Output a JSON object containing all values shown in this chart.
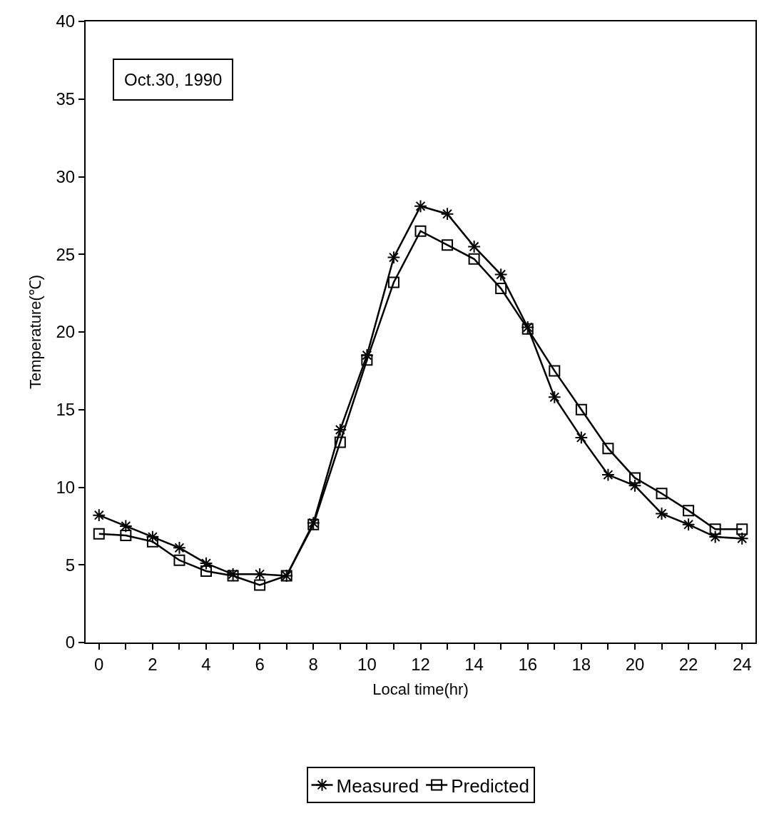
{
  "chart_data": {
    "type": "line",
    "xlabel": "Local time(hr)",
    "ylabel": "Temperature(℃)",
    "x": [
      0,
      1,
      2,
      3,
      4,
      5,
      6,
      7,
      8,
      9,
      10,
      11,
      12,
      13,
      14,
      15,
      16,
      17,
      18,
      19,
      20,
      21,
      22,
      23,
      24
    ],
    "series": [
      {
        "name": "Measured",
        "color": "#000000",
        "marker": "cross",
        "values": [
          8.2,
          7.5,
          6.8,
          6.1,
          5.1,
          4.4,
          4.4,
          4.3,
          7.7,
          13.7,
          18.5,
          24.8,
          28.1,
          27.6,
          25.5,
          23.7,
          20.3,
          15.8,
          13.2,
          10.8,
          10.1,
          8.3,
          7.6,
          6.8,
          6.7
        ]
      },
      {
        "name": "Predicted",
        "color": "#000000",
        "marker": "square",
        "values": [
          7.0,
          6.9,
          6.5,
          5.3,
          4.6,
          4.3,
          3.7,
          4.3,
          7.6,
          12.9,
          18.2,
          23.2,
          26.5,
          25.6,
          24.7,
          22.8,
          20.2,
          17.5,
          15.0,
          12.5,
          10.6,
          9.6,
          8.5,
          7.3,
          7.3
        ]
      }
    ],
    "xlim": [
      -0.5,
      24.5
    ],
    "ylim": [
      0,
      40
    ],
    "xticks": [
      0,
      {
        "value": 1,
        "label": null
      },
      2,
      {
        "value": 3,
        "label": null
      },
      4,
      {
        "value": 5,
        "label": null
      },
      6,
      {
        "value": 7,
        "label": null
      },
      8,
      {
        "value": 9,
        "label": null
      },
      10,
      {
        "value": 11,
        "label": null
      },
      12,
      {
        "value": 13,
        "label": null
      },
      14,
      {
        "value": 15,
        "label": null
      },
      16,
      {
        "value": 17,
        "label": null
      },
      18,
      {
        "value": 19,
        "label": null
      },
      20,
      {
        "value": 21,
        "label": null
      },
      22,
      {
        "value": 23,
        "label": null
      },
      24
    ],
    "yticks": [
      0,
      5,
      10,
      15,
      20,
      25,
      30,
      35,
      40
    ],
    "annotations": [
      "Oct.30, 1990"
    ],
    "legend": "bottom",
    "line_style": "solid"
  }
}
